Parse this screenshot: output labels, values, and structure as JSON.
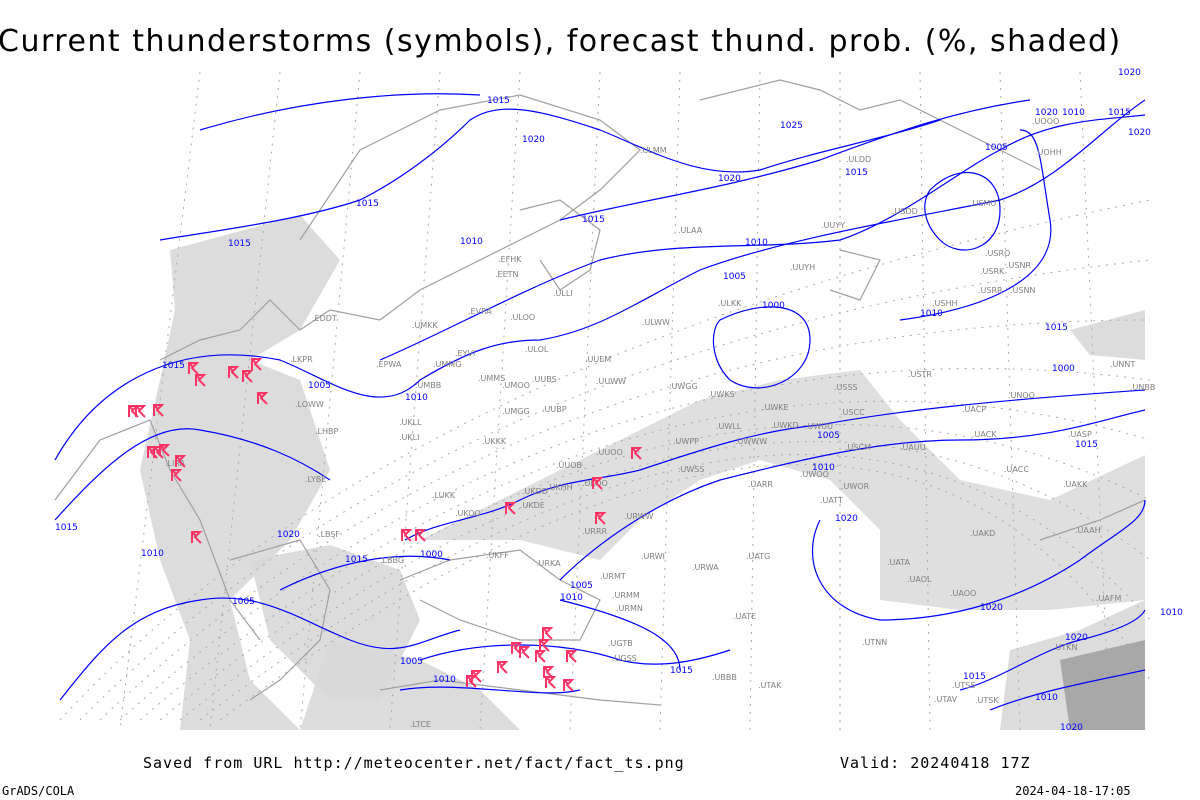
{
  "title": "Current thunderstorms (symbols), forecast thund. prob. (%, shaded)",
  "footer": {
    "source": "Saved from URL http://meteocenter.net/fact/fact_ts.png",
    "valid": "Valid: 20240418 17Z",
    "software": "GrADS/COLA",
    "generated": "2024-04-18-17:05"
  },
  "colors": {
    "isobar": "#0000ff",
    "coastline": "#a0a0a0",
    "storm_symbol": "#ff3366",
    "probability_shading": "#d8d8d8",
    "station_label": "#808080"
  },
  "legend": {
    "storm_symbol_icon": "thunderstorm-icon",
    "shading": "forecast thunderstorm probability (%)"
  },
  "isobar_labels": [
    "1015",
    "1020",
    "1025",
    "1015",
    "1020",
    "1015",
    "1010",
    "1015",
    "1015",
    "1010",
    "1015",
    "1010",
    "1005",
    "1005",
    "1000",
    "1010",
    "1015",
    "1005",
    "1010",
    "1000",
    "1005",
    "1015",
    "1010",
    "1020",
    "1015",
    "1020",
    "1010",
    "1005",
    "1010",
    "1005",
    "1000",
    "1015",
    "1020",
    "1010",
    "1020",
    "1020",
    "1015",
    "1015",
    "1020",
    "1015",
    "1010",
    "1005",
    "1010",
    "1020",
    "1020"
  ],
  "stations": [
    "ULLI",
    "EFHK",
    "EETN",
    "EVRA",
    "ULOO",
    "UMKK",
    "EYVI",
    "ULOL",
    "UMMG",
    "UMMS",
    "UMOO",
    "UUBS",
    "UUEM",
    "ULWW",
    "UMBB",
    "UUWW",
    "UWGG",
    "UKLL",
    "UKLI",
    "UMGG",
    "UUBP",
    "UKKK",
    "UUOO",
    "UUOB",
    "UWPP",
    "UWSS",
    "UWKS",
    "UWKE",
    "UWLL",
    "UWWW",
    "UWKD",
    "UWUU",
    "UKHH",
    "UKDD",
    "UKOO",
    "UKDE",
    "URRR",
    "UKFF",
    "URKA",
    "URMT",
    "URMM",
    "URMN",
    "URWI",
    "URWA",
    "UATG",
    "UATE",
    "UARR",
    "URWW",
    "UATT",
    "UWOR",
    "UWOO",
    "UACC",
    "UAKK",
    "UAAH",
    "UAKD",
    "UATA",
    "UAOL",
    "UAOO",
    "UAFM",
    "UTNN",
    "UBBB",
    "UGTB",
    "UGSS",
    "ULMM",
    "ULAA",
    "UUYY",
    "UUYH",
    "ULKK",
    "USHH",
    "USSS",
    "USCC",
    "USCM",
    "UAUU",
    "USTR",
    "UACP",
    "UACK",
    "UASP",
    "UNBB",
    "UNNT",
    "UNOO",
    "USRR",
    "USNN",
    "USRK",
    "USNR",
    "USRO",
    "USMU",
    "USDD",
    "ULDD",
    "UOOO",
    "UOHH",
    "EPWA",
    "LKPR",
    "LOWW",
    "LHBP",
    "LIRA",
    "LYBE",
    "LBSF",
    "LUKK",
    "UKOO",
    "LBBG",
    "EDDT",
    "UTSS",
    "UTAV",
    "UTSK",
    "UTKN",
    "UTAK",
    "LTCE"
  ]
}
